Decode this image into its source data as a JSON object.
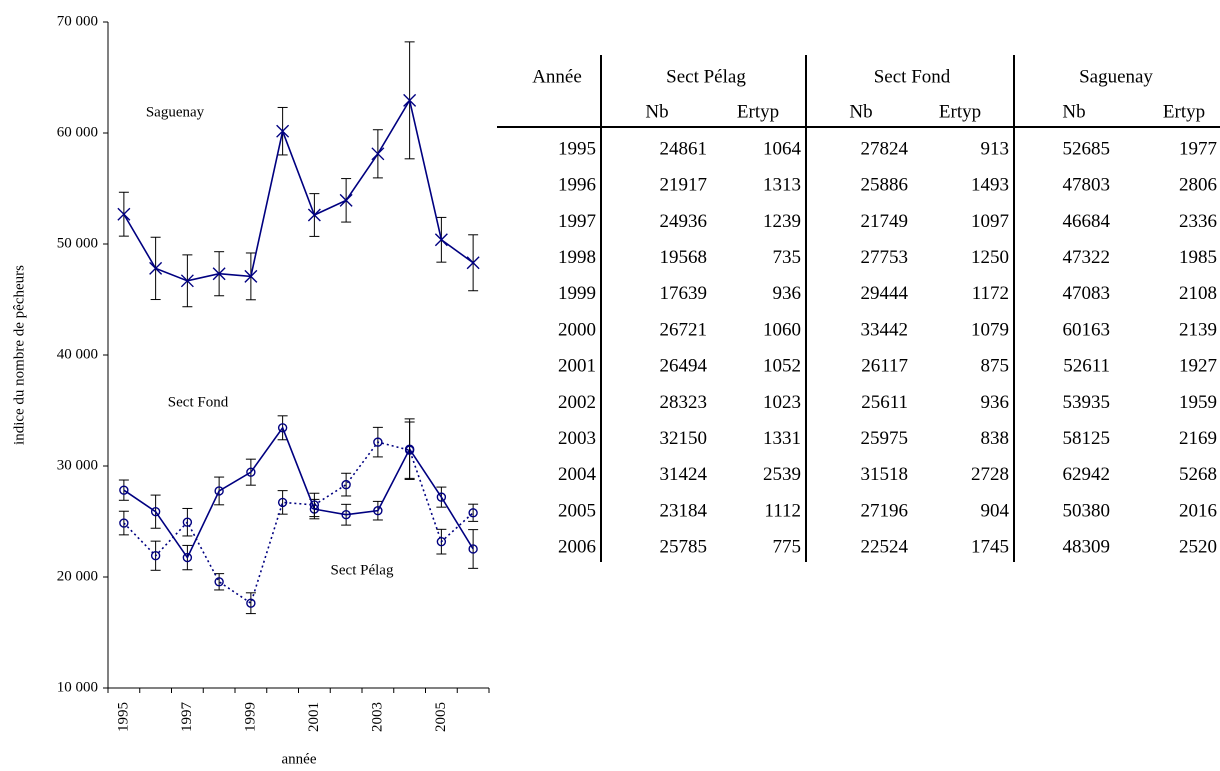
{
  "chart_data": {
    "type": "line",
    "y_label": "indice du nombre de pêcheurs",
    "x_label": "année",
    "categories": [
      "1995",
      null,
      "1997",
      null,
      "1999",
      null,
      "2001",
      null,
      "2003",
      null,
      "2005",
      null
    ],
    "ylim": [
      10000,
      70000
    ],
    "yticks": [
      {
        "value": 10000,
        "label": "10 000"
      },
      {
        "value": 20000,
        "label": "20 000"
      },
      {
        "value": 30000,
        "label": "30 000"
      },
      {
        "value": 40000,
        "label": "40 000"
      },
      {
        "value": 50000,
        "label": "50 000"
      },
      {
        "value": 60000,
        "label": "60 000"
      },
      {
        "value": 70000,
        "label": "70 000"
      }
    ],
    "series": [
      {
        "name": "Saguenay",
        "color": "#000080",
        "line_style": "solid",
        "marker": "x",
        "values": [
          52685,
          47803,
          46684,
          47322,
          47083,
          60163,
          52611,
          53935,
          58125,
          62942,
          50380,
          48309
        ],
        "errors": [
          1977,
          2806,
          2336,
          1985,
          2108,
          2139,
          1927,
          1959,
          2169,
          5268,
          2016,
          2520
        ]
      },
      {
        "name": "Sect Fond",
        "color": "#000080",
        "line_style": "solid",
        "marker": "circle",
        "values": [
          27824,
          25886,
          21749,
          27753,
          29444,
          33442,
          26117,
          25611,
          25975,
          31518,
          27196,
          22524
        ],
        "errors": [
          913,
          1493,
          1097,
          1250,
          1172,
          1079,
          875,
          936,
          838,
          2728,
          904,
          1745
        ]
      },
      {
        "name": "Sect Pélag",
        "color": "#000080",
        "line_style": "dotted",
        "marker": "circle",
        "values": [
          24861,
          21917,
          24936,
          19568,
          17639,
          26721,
          26494,
          28323,
          32150,
          31424,
          23184,
          25785
        ],
        "errors": [
          1064,
          1313,
          1239,
          735,
          936,
          1060,
          1052,
          1023,
          1331,
          2539,
          1112,
          775
        ]
      }
    ]
  },
  "table": {
    "header": [
      "Année",
      "Sect Pélag",
      "Sect Fond",
      "Saguenay"
    ],
    "subheader": [
      "Nb",
      "Ertyp",
      "Nb",
      "Ertyp",
      "Nb",
      "Ertyp"
    ],
    "rows": [
      [
        1995,
        24861,
        1064,
        27824,
        913,
        52685,
        1977
      ],
      [
        1996,
        21917,
        1313,
        25886,
        1493,
        47803,
        2806
      ],
      [
        1997,
        24936,
        1239,
        21749,
        1097,
        46684,
        2336
      ],
      [
        1998,
        19568,
        735,
        27753,
        1250,
        47322,
        1985
      ],
      [
        1999,
        17639,
        936,
        29444,
        1172,
        47083,
        2108
      ],
      [
        2000,
        26721,
        1060,
        33442,
        1079,
        60163,
        2139
      ],
      [
        2001,
        26494,
        1052,
        26117,
        875,
        52611,
        1927
      ],
      [
        2002,
        28323,
        1023,
        25611,
        936,
        53935,
        1959
      ],
      [
        2003,
        32150,
        1331,
        25975,
        838,
        58125,
        2169
      ],
      [
        2004,
        31424,
        2539,
        31518,
        2728,
        62942,
        5268
      ],
      [
        2005,
        23184,
        1112,
        27196,
        904,
        50380,
        2016
      ],
      [
        2006,
        25785,
        775,
        22524,
        1745,
        48309,
        2520
      ]
    ]
  }
}
